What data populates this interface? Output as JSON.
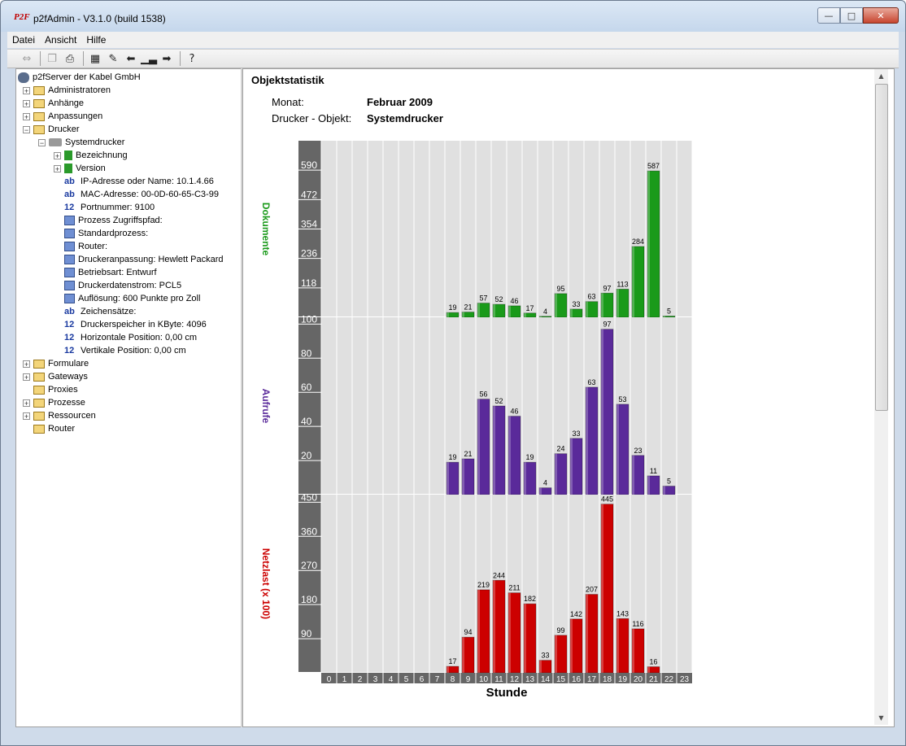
{
  "window": {
    "title": "p2fAdmin - V3.1.0 (build 1538)",
    "app_icon_text": "P2F"
  },
  "menu": [
    "Datei",
    "Ansicht",
    "Hilfe"
  ],
  "toolbar": [
    "swap-icon",
    "copy-icon",
    "print-icon",
    "properties-icon",
    "edit-properties-icon",
    "back-icon",
    "statistics-icon",
    "forward-icon",
    "help-icon"
  ],
  "tree": {
    "root": "p2fServer der Kabel GmbH",
    "nodes": [
      {
        "label": "Administratoren",
        "icon": "folder-icon",
        "level": 1,
        "expander": "+"
      },
      {
        "label": "Anhänge",
        "icon": "folder-icon",
        "level": 1,
        "expander": "+"
      },
      {
        "label": "Anpassungen",
        "icon": "folder-icon",
        "level": 1,
        "expander": "+"
      },
      {
        "label": "Drucker",
        "icon": "folder-icon",
        "level": 1,
        "expander": "-"
      },
      {
        "label": "Systemdrucker",
        "icon": "printer-icon",
        "level": 2,
        "expander": "-"
      },
      {
        "label": "Bezeichnung",
        "icon": "list-icon",
        "level": 3,
        "expander": "+"
      },
      {
        "label": "Version",
        "icon": "list-icon",
        "level": 3,
        "expander": "+"
      },
      {
        "label": "IP-Adresse oder Name:   10.1.4.66",
        "icon": "ab",
        "level": 3,
        "expander": ""
      },
      {
        "label": "MAC-Adresse:   00-0D-60-65-C3-99",
        "icon": "ab",
        "level": 3,
        "expander": ""
      },
      {
        "label": "Portnummer:   9100",
        "icon": "12",
        "level": 3,
        "expander": ""
      },
      {
        "label": "Prozess Zugriffspfad:",
        "icon": "link-icon",
        "level": 3,
        "expander": ""
      },
      {
        "label": "Standardprozess:",
        "icon": "link-icon",
        "level": 3,
        "expander": ""
      },
      {
        "label": "Router:",
        "icon": "link-icon",
        "level": 3,
        "expander": ""
      },
      {
        "label": "Druckeranpassung:   Hewlett Packard",
        "icon": "link-icon",
        "level": 3,
        "expander": ""
      },
      {
        "label": "Betriebsart:   Entwurf",
        "icon": "select-icon",
        "level": 3,
        "expander": ""
      },
      {
        "label": "Druckerdatenstrom:   PCL5",
        "icon": "select-icon",
        "level": 3,
        "expander": ""
      },
      {
        "label": "Auflösung:   600 Punkte pro Zoll",
        "icon": "select-icon",
        "level": 3,
        "expander": ""
      },
      {
        "label": "Zeichensätze:",
        "icon": "ab",
        "level": 3,
        "expander": ""
      },
      {
        "label": "Druckerspeicher in KByte:   4096",
        "icon": "12",
        "level": 3,
        "expander": ""
      },
      {
        "label": "Horizontale Position:   0,00 cm",
        "icon": "12",
        "level": 3,
        "expander": ""
      },
      {
        "label": "Vertikale Position:   0,00 cm",
        "icon": "12",
        "level": 3,
        "expander": ""
      },
      {
        "label": "Formulare",
        "icon": "folder-icon",
        "level": 1,
        "expander": "+"
      },
      {
        "label": "Gateways",
        "icon": "folder-icon",
        "level": 1,
        "expander": "+"
      },
      {
        "label": "Proxies",
        "icon": "folder-icon",
        "level": 1,
        "expander": ""
      },
      {
        "label": "Prozesse",
        "icon": "folder-icon",
        "level": 1,
        "expander": "+"
      },
      {
        "label": "Ressourcen",
        "icon": "folder-icon",
        "level": 1,
        "expander": "+"
      },
      {
        "label": "Router",
        "icon": "folder-icon",
        "level": 1,
        "expander": ""
      }
    ]
  },
  "stats": {
    "heading": "Objektstatistik",
    "month_label": "Monat:",
    "month_value": "Februar 2009",
    "object_label": "Drucker - Objekt:",
    "object_value": "Systemdrucker"
  },
  "chart_data": {
    "type": "bar",
    "xlabel": "Stunde",
    "categories": [
      "0",
      "1",
      "2",
      "3",
      "4",
      "5",
      "6",
      "7",
      "8",
      "9",
      "10",
      "11",
      "12",
      "13",
      "14",
      "15",
      "16",
      "17",
      "18",
      "19",
      "20",
      "21",
      "22",
      "23"
    ],
    "series": [
      {
        "name": "Dokumente",
        "color": "#1a9a1a",
        "ymax": 708,
        "ticks": [
          118,
          236,
          354,
          472,
          590
        ],
        "values": [
          null,
          null,
          null,
          null,
          null,
          null,
          null,
          null,
          19,
          21,
          57,
          52,
          46,
          17,
          4,
          95,
          33,
          63,
          97,
          113,
          284,
          587,
          5,
          null
        ]
      },
      {
        "name": "Aufrufe",
        "color": "#5a2a9a",
        "ymax": 104,
        "ticks": [
          20,
          40,
          60,
          80,
          100
        ],
        "values": [
          null,
          null,
          null,
          null,
          null,
          null,
          null,
          null,
          19,
          21,
          56,
          52,
          46,
          19,
          4,
          24,
          33,
          63,
          97,
          53,
          23,
          11,
          5,
          null
        ]
      },
      {
        "name": "Netzlast (x 100)",
        "color": "#cc0000",
        "ymax": 470,
        "ticks": [
          90,
          180,
          270,
          360,
          450
        ],
        "values": [
          null,
          null,
          null,
          null,
          null,
          null,
          null,
          null,
          17,
          94,
          219,
          244,
          211,
          182,
          33,
          99,
          142,
          207,
          445,
          143,
          116,
          16,
          null,
          null
        ]
      }
    ]
  }
}
